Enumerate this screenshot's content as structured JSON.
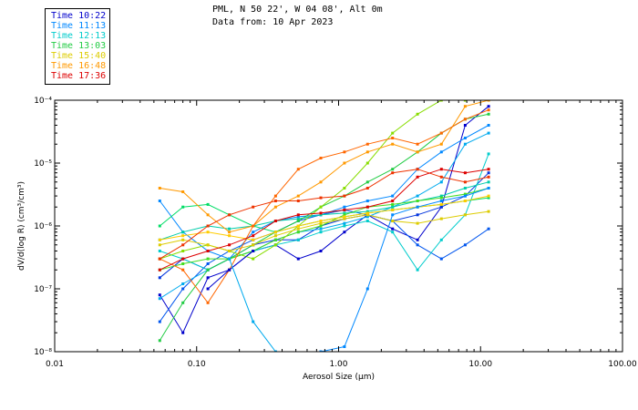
{
  "header": {
    "line1": "PML, N 50 22', W 04 08', Alt 0m",
    "line2": "Data from: 10 Apr 2023"
  },
  "legend": [
    {
      "label": "Time 10:22",
      "color": "#0000cc"
    },
    {
      "label": "Time 11:13",
      "color": "#0088ff"
    },
    {
      "label": "Time 12:13",
      "color": "#00cccc"
    },
    {
      "label": "Time 13:03",
      "color": "#22cc44"
    },
    {
      "label": "Time 15:40",
      "color": "#ddcc00"
    },
    {
      "label": "Time 16:48",
      "color": "#ff9900"
    },
    {
      "label": "Time 17:36",
      "color": "#dd0000"
    }
  ],
  "chart_data": {
    "type": "line",
    "xlabel": "Aerosol Size (µm)",
    "ylabel": "dV/d(log R) (cm³/cm³)",
    "x_scale": "log",
    "y_scale": "log",
    "xlim": [
      0.01,
      100
    ],
    "ylim": [
      1e-08,
      0.0001
    ],
    "x_ticks": [
      {
        "value": 0.01,
        "label": "0.01"
      },
      {
        "value": 0.1,
        "label": "0.10"
      },
      {
        "value": 1,
        "label": "1.00"
      },
      {
        "value": 10,
        "label": "10.00"
      },
      {
        "value": 100,
        "label": "100.00"
      }
    ],
    "y_ticks": [
      {
        "value": 1e-08,
        "label": "10⁻⁸"
      },
      {
        "value": 1e-07,
        "label": "10⁻⁷"
      },
      {
        "value": 1e-06,
        "label": "10⁻⁶"
      },
      {
        "value": 1e-05,
        "label": "10⁻⁵"
      },
      {
        "value": 0.0001,
        "label": "10⁻⁴"
      }
    ],
    "x": [
      0.055,
      0.08,
      0.12,
      0.17,
      0.25,
      0.36,
      0.52,
      0.75,
      1.1,
      1.6,
      2.4,
      3.6,
      5.3,
      7.8,
      11.4
    ],
    "series": [
      {
        "color": "#0000cc",
        "values": [
          8e-08,
          2e-08,
          1.5e-07,
          2e-07,
          4e-07,
          5e-07,
          3e-07,
          4e-07,
          8e-07,
          1.5e-06,
          9e-07,
          6e-07,
          2e-06,
          4e-05,
          8e-05
        ]
      },
      {
        "color": "#0033dd",
        "values": [
          1.5e-07,
          3e-07,
          2e-07,
          3e-07,
          5e-07,
          6e-07,
          6e-07,
          1e-06,
          1.3e-06,
          1.5e-06,
          1.2e-06,
          1.5e-06,
          2e-06,
          3e-06,
          7e-06
        ]
      },
      {
        "color": "#0055ee",
        "values": [
          3e-08,
          1e-07,
          2.5e-07,
          4e-07,
          6e-07,
          8e-07,
          1.2e-06,
          1.5e-06,
          1.8e-06,
          1.5e-06,
          1.2e-06,
          5e-07,
          3e-07,
          5e-07,
          9e-07
        ]
      },
      {
        "color": "#0088ff",
        "values": [
          2.5e-06,
          8e-07,
          4e-07,
          3e-07,
          8e-07,
          1.2e-06,
          1.4e-06,
          1.5e-06,
          2e-06,
          2.5e-06,
          3e-06,
          8e-06,
          1.5e-05,
          2.5e-05,
          4e-05
        ]
      },
      {
        "color": "#00aaee",
        "values": [
          7e-08,
          1.2e-07,
          2e-07,
          3e-07,
          4e-07,
          6e-07,
          8e-07,
          9e-07,
          1.1e-06,
          1.4e-06,
          2e-06,
          3e-06,
          5e-06,
          2e-05,
          3e-05
        ]
      },
      {
        "color": "#00cccc",
        "values": [
          4e-07,
          3e-07,
          2e-07,
          3e-07,
          4e-07,
          5e-07,
          6e-07,
          8e-07,
          1e-06,
          1.2e-06,
          8e-07,
          2e-07,
          6e-07,
          1.5e-06,
          1.4e-05
        ]
      },
      {
        "color": "#00ccaa",
        "values": [
          6e-07,
          8e-07,
          1e-06,
          9e-07,
          1e-06,
          1.2e-06,
          1.3e-06,
          1.5e-06,
          1.6e-06,
          1.7e-06,
          2e-06,
          2.5e-06,
          3e-06,
          4e-06,
          5e-06
        ]
      },
      {
        "color": "#00dd66",
        "values": [
          1e-06,
          2e-06,
          2.2e-06,
          1.5e-06,
          1e-06,
          8e-07,
          1e-06,
          1.2e-06,
          1.4e-06,
          1.6e-06,
          1.8e-06,
          2e-06,
          2.2e-06,
          2.5e-06,
          2.8e-06
        ]
      },
      {
        "color": "#22cc44",
        "values": [
          1.5e-08,
          6e-08,
          2e-07,
          3e-07,
          5e-07,
          8e-07,
          1.2e-06,
          2e-06,
          3e-06,
          5e-06,
          8e-06,
          1.5e-05,
          3e-05,
          5e-05,
          6e-05
        ]
      },
      {
        "color": "#44dd22",
        "values": [
          2e-07,
          2.5e-07,
          3e-07,
          3e-07,
          4e-07,
          6e-07,
          8e-07,
          1e-06,
          1.5e-06,
          2e-06,
          2.2e-06,
          2.5e-06,
          2.8e-06,
          3.2e-06,
          4e-06
        ]
      },
      {
        "color": "#88dd00",
        "values": [
          3e-07,
          4e-07,
          5e-07,
          4e-07,
          3e-07,
          5e-07,
          1e-06,
          2e-06,
          4e-06,
          1e-05,
          3e-05,
          6e-05,
          0.0001,
          0.0001,
          0.0001
        ]
      },
      {
        "color": "#ddcc00",
        "values": [
          5e-07,
          6e-07,
          5e-07,
          4e-07,
          5e-07,
          7e-07,
          9e-07,
          1.1e-06,
          1.3e-06,
          1.5e-06,
          1.2e-06,
          1.1e-06,
          1.3e-06,
          1.5e-06,
          1.7e-06
        ]
      },
      {
        "color": "#ffcc00",
        "values": [
          6e-07,
          7e-07,
          8e-07,
          7e-07,
          6e-07,
          8e-07,
          1e-06,
          1.2e-06,
          1.4e-06,
          1.6e-06,
          1.8e-06,
          2e-06,
          2.2e-06,
          2.5e-06,
          3e-06
        ]
      },
      {
        "color": "#ff9900",
        "values": [
          4e-06,
          3.5e-06,
          1.5e-06,
          8e-07,
          1e-06,
          2e-06,
          3e-06,
          5e-06,
          1e-05,
          1.5e-05,
          2e-05,
          1.5e-05,
          2e-05,
          8e-05,
          0.0001
        ]
      },
      {
        "color": "#ff6600",
        "values": [
          3e-07,
          2e-07,
          6e-08,
          2e-07,
          1e-06,
          3e-06,
          8e-06,
          1.2e-05,
          1.5e-05,
          2e-05,
          2.5e-05,
          2e-05,
          3e-05,
          5e-05,
          7e-05
        ]
      },
      {
        "color": "#ee3300",
        "values": [
          3e-07,
          5e-07,
          1e-06,
          1.5e-06,
          2e-06,
          2.5e-06,
          2.5e-06,
          2.8e-06,
          3e-06,
          4e-06,
          7e-06,
          8e-06,
          6e-06,
          5e-06,
          6e-06
        ]
      },
      {
        "color": "#dd0000",
        "values": [
          2e-07,
          3e-07,
          4e-07,
          5e-07,
          7e-07,
          1.2e-06,
          1.5e-06,
          1.6e-06,
          1.8e-06,
          2e-06,
          2.5e-06,
          6e-06,
          8e-06,
          7e-06,
          8e-06
        ]
      },
      {
        "color": "#0000cc",
        "values": [
          null,
          null,
          1e-07,
          2e-07,
          4e-07,
          null,
          null,
          null,
          null,
          null,
          null,
          null,
          null,
          null,
          null
        ]
      },
      {
        "color": "#00aaee",
        "values": [
          null,
          null,
          null,
          3e-07,
          3e-08,
          1e-08,
          null,
          null,
          null,
          null,
          null,
          null,
          null,
          null,
          null
        ]
      },
      {
        "color": "#0088ff",
        "values": [
          null,
          null,
          null,
          null,
          null,
          null,
          null,
          1e-08,
          1.2e-08,
          1e-07,
          1.5e-06,
          2e-06,
          2.5e-06,
          3e-06,
          4e-06
        ]
      }
    ]
  }
}
